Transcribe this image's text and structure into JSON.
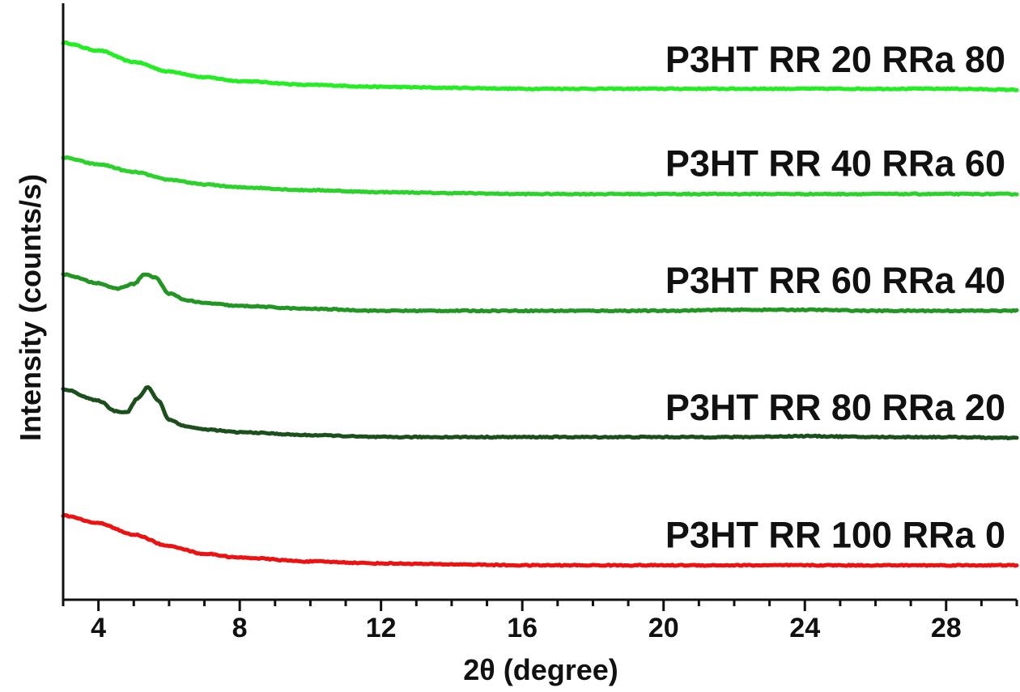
{
  "chart_data": {
    "type": "line",
    "title": "",
    "xlabel": "2θ (degree)",
    "ylabel": "Intensity (counts/s)",
    "xlim": [
      3,
      30
    ],
    "xticks": [
      4,
      8,
      12,
      16,
      20,
      24,
      28
    ],
    "y_tick_labels": false,
    "grid": false,
    "legend": "none",
    "series": [
      {
        "name": "P3HT RR 20 RRa 80",
        "color": "#22ee22",
        "x": [
          3,
          4,
          5,
          6,
          7,
          8,
          10,
          12,
          14,
          16,
          18,
          20,
          22,
          24,
          26,
          28,
          30
        ],
        "y": [
          5.82,
          5.74,
          5.62,
          5.52,
          5.46,
          5.42,
          5.38,
          5.36,
          5.35,
          5.34,
          5.34,
          5.34,
          5.34,
          5.34,
          5.34,
          5.34,
          5.33
        ]
      },
      {
        "name": "P3HT RR 40 RRa 60",
        "color": "#2ad22a",
        "x": [
          3,
          4,
          5,
          6,
          7,
          8,
          10,
          12,
          14,
          16,
          18,
          20,
          22,
          24,
          26,
          28,
          30
        ],
        "y": [
          4.62,
          4.55,
          4.47,
          4.39,
          4.34,
          4.31,
          4.28,
          4.26,
          4.25,
          4.24,
          4.24,
          4.24,
          4.24,
          4.24,
          4.24,
          4.24,
          4.24
        ]
      },
      {
        "name": "P3HT RR 60 RRa 40",
        "color": "#229622",
        "x": [
          3,
          4,
          4.5,
          5,
          5.3,
          5.6,
          6,
          6.5,
          7,
          8,
          10,
          12,
          14,
          16,
          18,
          20,
          22,
          24,
          26,
          28,
          30
        ],
        "y": [
          3.4,
          3.31,
          3.25,
          3.3,
          3.4,
          3.37,
          3.2,
          3.13,
          3.1,
          3.07,
          3.04,
          3.02,
          3.02,
          3.02,
          3.02,
          3.02,
          3.03,
          3.03,
          3.02,
          3.02,
          3.02
        ]
      },
      {
        "name": "P3HT RR 80 RRa 20",
        "color": "#1b4f1b",
        "x": [
          3,
          4,
          4.5,
          4.8,
          5.1,
          5.4,
          5.7,
          6,
          6.5,
          7,
          8,
          10,
          12,
          14,
          16,
          18,
          20,
          22,
          24,
          26,
          28,
          30
        ],
        "y": [
          2.2,
          2.08,
          1.97,
          1.96,
          2.1,
          2.22,
          2.08,
          1.88,
          1.81,
          1.78,
          1.75,
          1.72,
          1.7,
          1.7,
          1.7,
          1.7,
          1.7,
          1.7,
          1.71,
          1.7,
          1.7,
          1.69
        ]
      },
      {
        "name": "P3HT RR 100 RRa 0",
        "color": "#ee1111",
        "x": [
          3,
          4,
          5,
          6,
          7,
          8,
          10,
          12,
          14,
          16,
          18,
          20,
          22,
          24,
          26,
          28,
          30
        ],
        "y": [
          0.88,
          0.8,
          0.68,
          0.56,
          0.48,
          0.44,
          0.4,
          0.38,
          0.37,
          0.36,
          0.36,
          0.36,
          0.36,
          0.36,
          0.36,
          0.36,
          0.36
        ]
      }
    ]
  }
}
